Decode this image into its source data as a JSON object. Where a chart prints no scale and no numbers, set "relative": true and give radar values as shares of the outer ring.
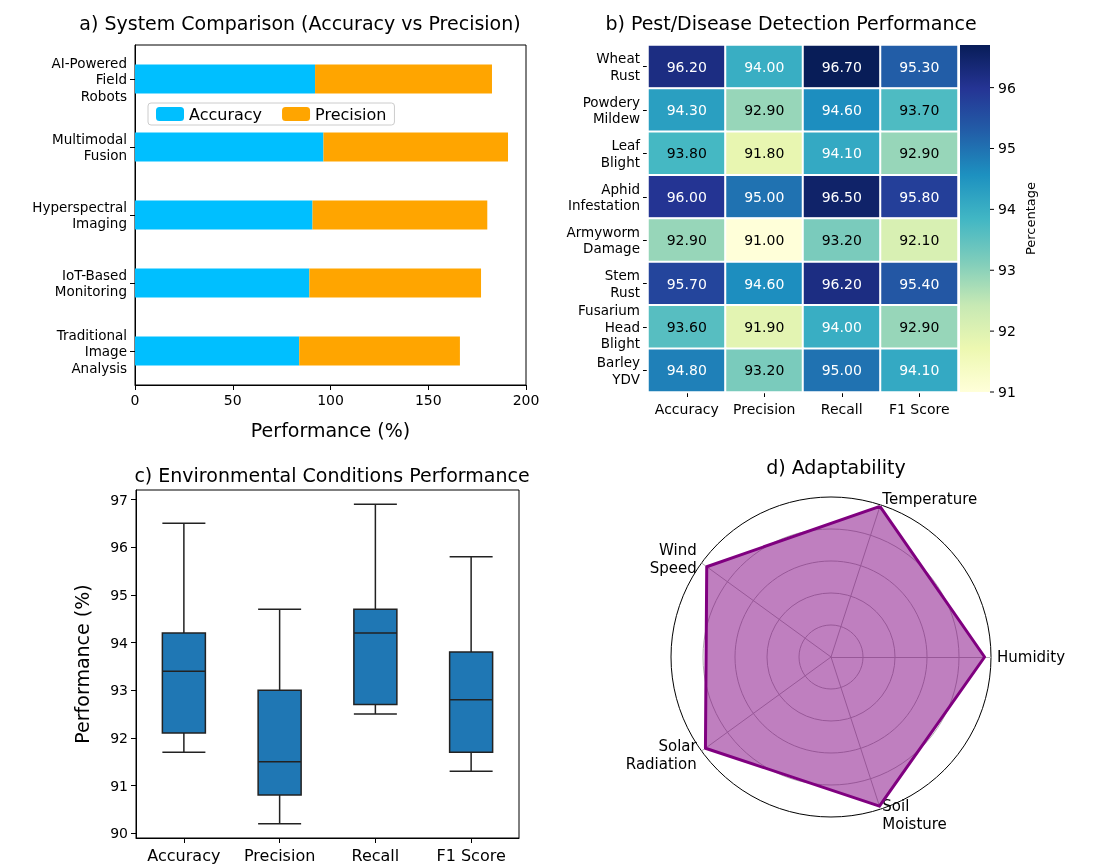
{
  "chart_data": [
    {
      "type": "bar",
      "title": "a) System Comparison (Accuracy vs Precision)",
      "xlabel": "Performance (%)",
      "orientation": "horizontal",
      "stacked": true,
      "legend": "top left",
      "categories": [
        "AI-Powered Field Robots",
        "Multimodal Fusion",
        "Hyperspectral Imaging",
        "IoT-Based Monitoring",
        "Traditional Image Analysis"
      ],
      "series": [
        {
          "name": "Accuracy",
          "color": "#00bfff",
          "values": [
            92.1,
            96.4,
            90.8,
            89.2,
            84.0
          ]
        },
        {
          "name": "Precision",
          "color": "#ffa500",
          "values": [
            90.5,
            94.4,
            89.4,
            87.8,
            82.2
          ]
        }
      ],
      "xlim": [
        0,
        200
      ],
      "xticks": [
        0,
        50,
        100,
        150,
        200
      ]
    },
    {
      "type": "heatmap",
      "title": "b) Pest/Disease Detection Performance",
      "clabel": "Percentage",
      "categories": [
        "Accuracy",
        "Precision",
        "Recall",
        "F1 Score"
      ],
      "y_categories": [
        "Wheat Rust",
        "Powdery Mildew",
        "Leaf Blight",
        "Aphid Infestation",
        "Armyworm Damage",
        "Stem Rust",
        "Fusarium Head Blight",
        "Barley YDV"
      ],
      "cells": [
        [
          96.2,
          94.0,
          96.7,
          95.3
        ],
        [
          94.3,
          92.9,
          94.6,
          93.7
        ],
        [
          93.8,
          91.8,
          94.1,
          92.9
        ],
        [
          96.0,
          95.0,
          96.5,
          95.8
        ],
        [
          92.9,
          91.0,
          93.2,
          92.1
        ],
        [
          95.7,
          94.6,
          96.2,
          95.4
        ],
        [
          93.6,
          91.9,
          94.0,
          92.9
        ],
        [
          94.8,
          93.2,
          95.0,
          94.1
        ]
      ],
      "cell_labels": [
        [
          "96.20",
          "94.00",
          "96.70",
          "95.30"
        ],
        [
          "94.30",
          "92.90",
          "94.60",
          "93.70"
        ],
        [
          "93.80",
          "91.80",
          "94.10",
          "92.90"
        ],
        [
          "96.00",
          "95.00",
          "96.50",
          "95.80"
        ],
        [
          "92.90",
          "91.00",
          "93.20",
          "92.10"
        ],
        [
          "95.70",
          "94.60",
          "96.20",
          "95.40"
        ],
        [
          "93.60",
          "91.90",
          "94.00",
          "92.90"
        ],
        [
          "94.80",
          "93.20",
          "95.00",
          "94.10"
        ]
      ],
      "clim": [
        91,
        96.7
      ],
      "cticks": [
        91,
        92,
        93,
        94,
        95,
        96
      ]
    },
    {
      "type": "box",
      "title": "c) Environmental Conditions Performance",
      "ylabel": "Performance (%)",
      "categories": [
        "Accuracy",
        "Precision",
        "Recall",
        "F1 Score"
      ],
      "series": [
        {
          "color": "#1f77b4",
          "boxes": [
            {
              "low": 91.7,
              "q1": 92.1,
              "median": 93.4,
              "q3": 94.2,
              "high": 96.5
            },
            {
              "low": 90.2,
              "q1": 90.8,
              "median": 91.5,
              "q3": 93.0,
              "high": 94.7
            },
            {
              "low": 92.5,
              "q1": 92.7,
              "median": 94.2,
              "q3": 94.7,
              "high": 96.9
            },
            {
              "low": 91.3,
              "q1": 91.7,
              "median": 92.8,
              "q3": 93.8,
              "high": 95.8
            }
          ]
        }
      ],
      "ylim": [
        89.9,
        97.2
      ],
      "yticks": [
        90,
        91,
        92,
        93,
        94,
        95,
        96,
        97
      ]
    },
    {
      "type": "radar",
      "title": "d) Adaptability",
      "relative": true,
      "categories": [
        "Temperature",
        "Humidity",
        "Soil Moisture",
        "Solar Radiation",
        "Wind Speed"
      ],
      "series": [
        {
          "color": "#800080",
          "values": [
            0.99,
            0.96,
            0.98,
            0.97,
            0.96
          ]
        }
      ]
    }
  ]
}
